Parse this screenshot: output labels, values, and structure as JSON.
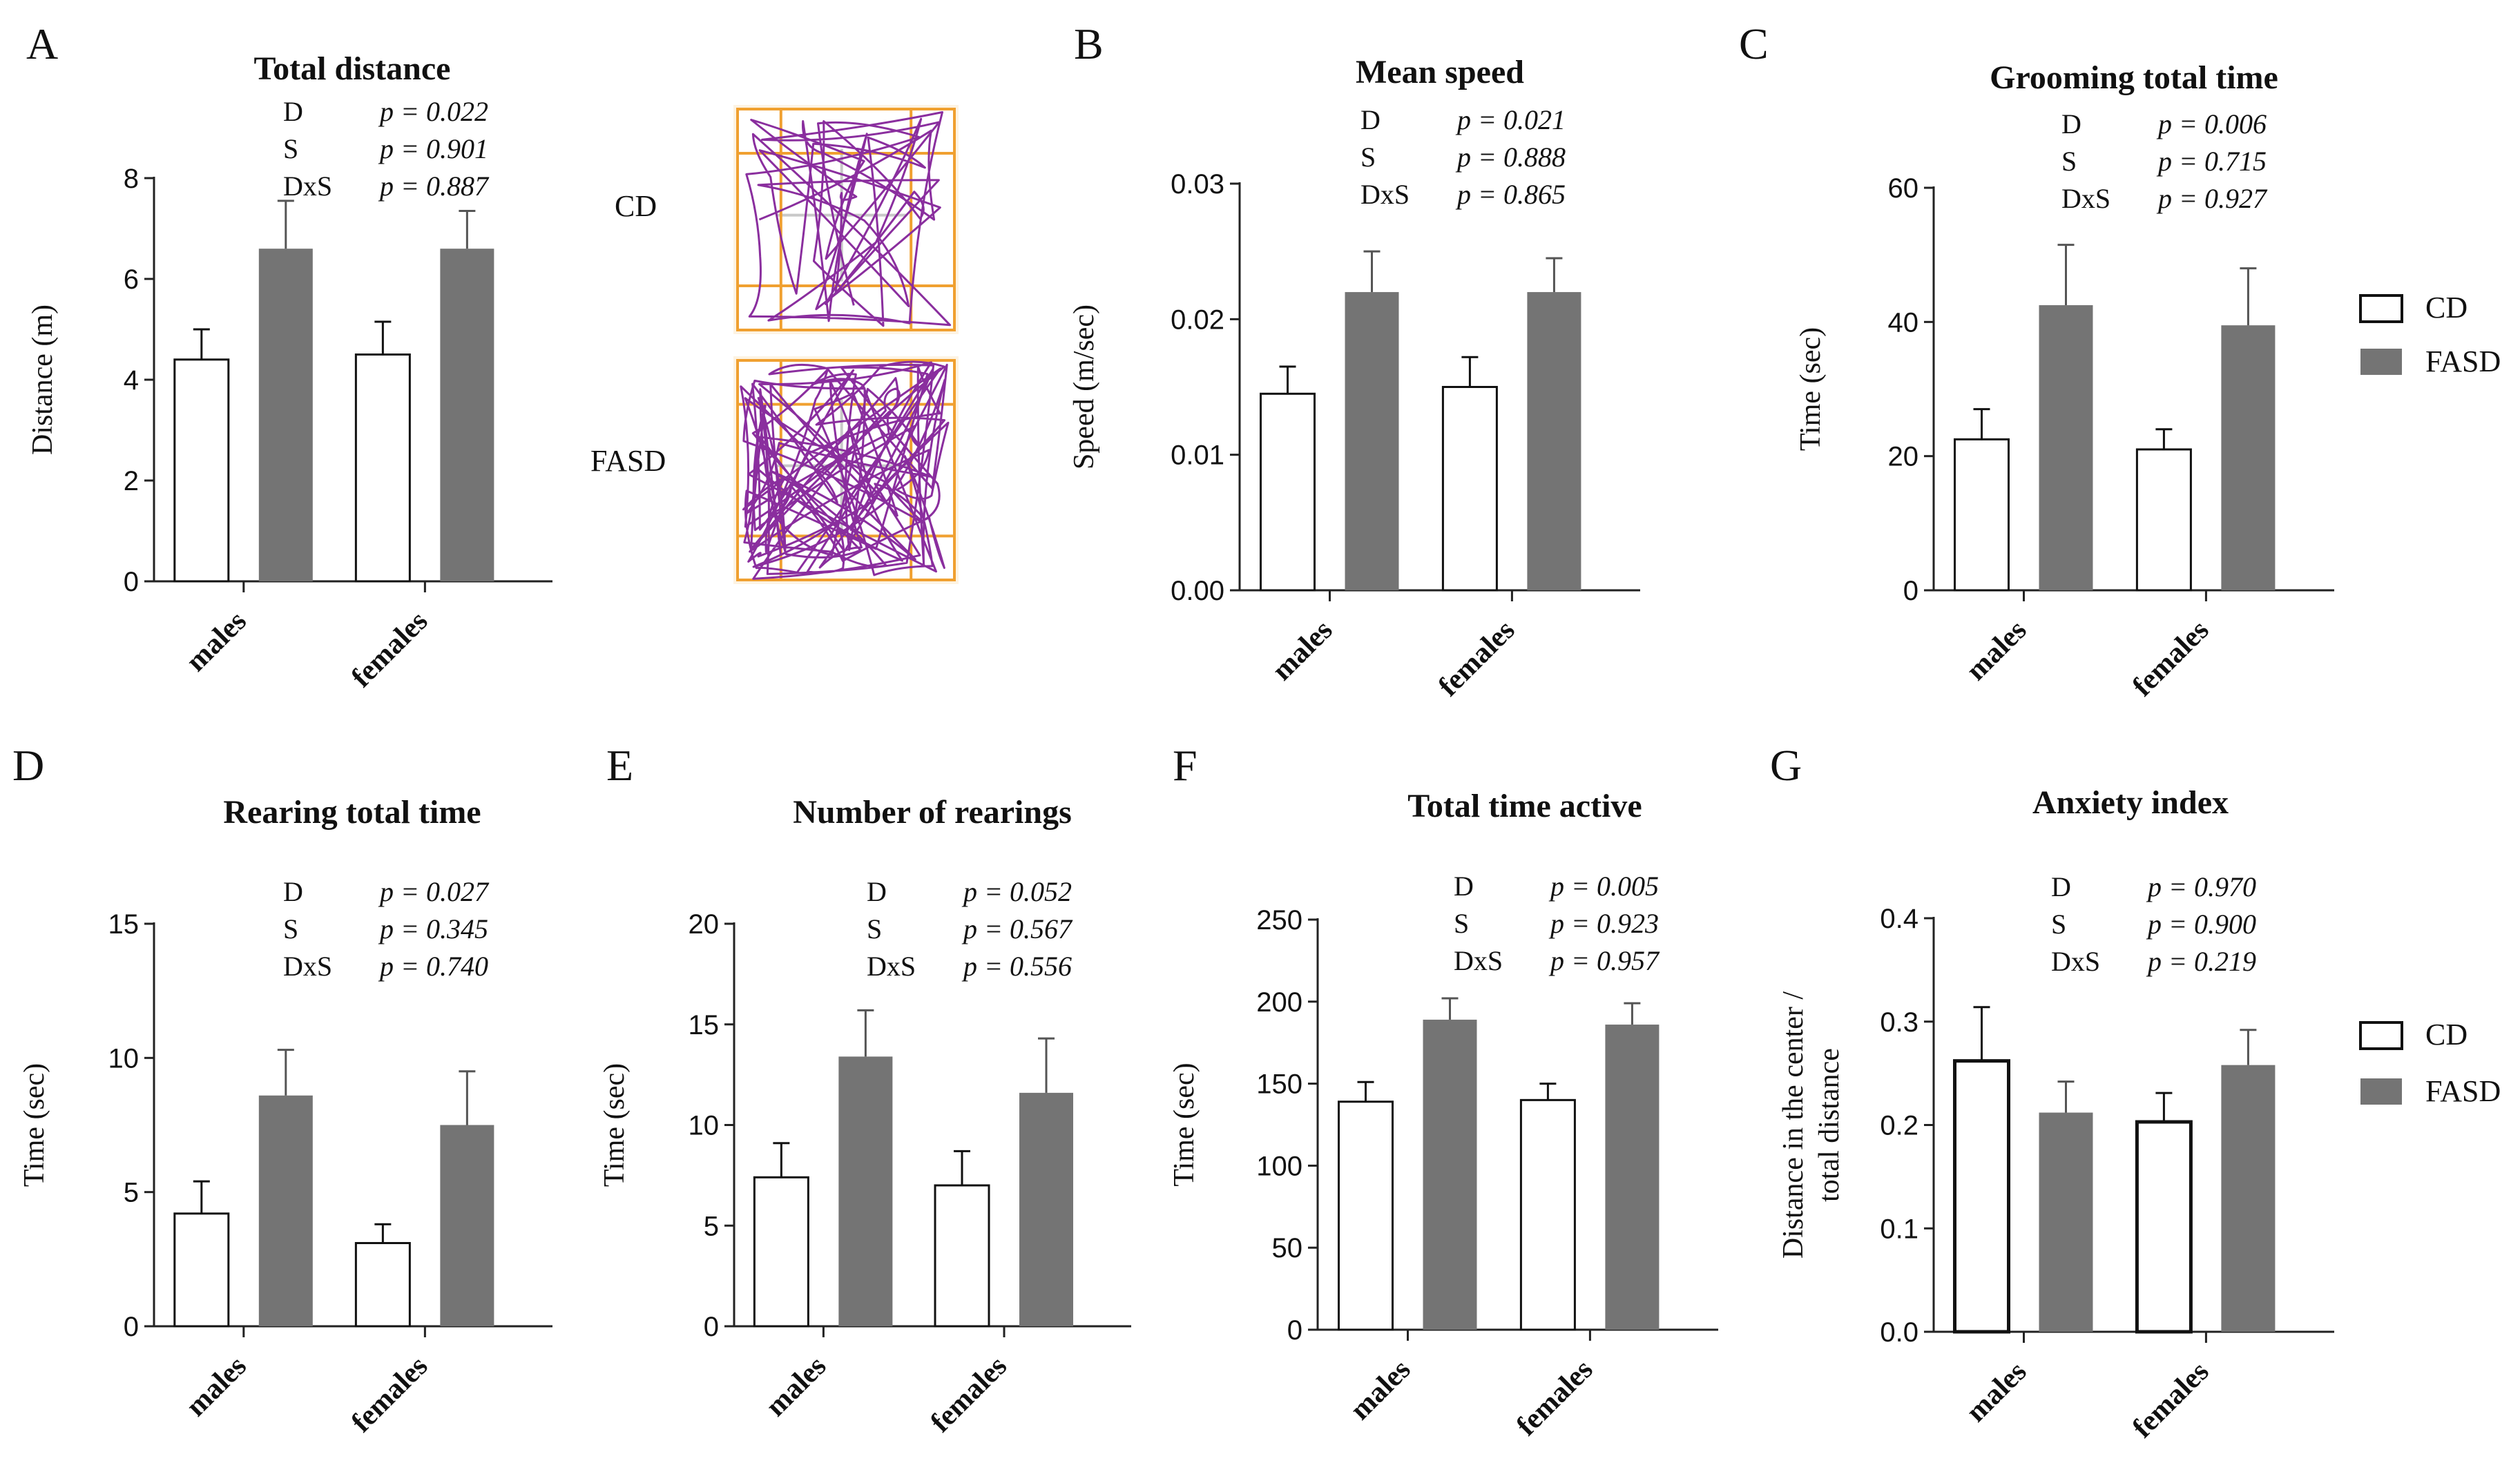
{
  "colors": {
    "cd": "#ffffff",
    "fasd": "#747474",
    "axis": "#222222",
    "track": "#8a2e9e",
    "arena_grid": "#f0a030",
    "arena_center": "#c8c8c8"
  },
  "legend": {
    "cd": "CD",
    "fasd": "FASD"
  },
  "track_panel": {
    "cd_label": "CD",
    "fasd_label": "FASD"
  },
  "chart_data": [
    {
      "id": "A",
      "type": "bar",
      "letter": "A",
      "title": "Total distance",
      "ylabel": "Distance (m)",
      "categories": [
        "males",
        "females"
      ],
      "ylim": [
        0,
        8
      ],
      "yticks": [
        "0",
        "2",
        "4",
        "6",
        "8"
      ],
      "tick_values": [
        0,
        2,
        4,
        6,
        8
      ],
      "series": [
        {
          "name": "CD",
          "values": [
            4.4,
            4.5
          ],
          "errors": [
            0.6,
            0.65
          ]
        },
        {
          "name": "FASD",
          "values": [
            6.6,
            6.6
          ],
          "errors": [
            0.95,
            0.75
          ]
        }
      ],
      "stats": [
        {
          "label": "D",
          "p": "p = 0.022"
        },
        {
          "label": "S",
          "p": "p = 0.901"
        },
        {
          "label": "DxS",
          "p": "p = 0.887"
        }
      ]
    },
    {
      "id": "B",
      "type": "bar",
      "letter": "B",
      "title": "Mean speed",
      "ylabel": "Speed (m/sec)",
      "categories": [
        "males",
        "females"
      ],
      "ylim": [
        0,
        0.03
      ],
      "yticks": [
        "0.00",
        "0.01",
        "0.02",
        "0.03"
      ],
      "tick_values": [
        0,
        0.01,
        0.02,
        0.03
      ],
      "series": [
        {
          "name": "CD",
          "values": [
            0.0145,
            0.015
          ],
          "errors": [
            0.002,
            0.0022
          ]
        },
        {
          "name": "FASD",
          "values": [
            0.022,
            0.022
          ],
          "errors": [
            0.003,
            0.0025
          ]
        }
      ],
      "stats": [
        {
          "label": "D",
          "p": "p = 0.021"
        },
        {
          "label": "S",
          "p": "p = 0.888"
        },
        {
          "label": "DxS",
          "p": "p = 0.865"
        }
      ]
    },
    {
      "id": "C",
      "type": "bar",
      "letter": "C",
      "title": "Grooming total time",
      "ylabel": "Time (sec)",
      "categories": [
        "males",
        "females"
      ],
      "ylim": [
        0,
        60
      ],
      "yticks": [
        "0",
        "20",
        "40",
        "60"
      ],
      "tick_values": [
        0,
        20,
        40,
        60
      ],
      "series": [
        {
          "name": "CD",
          "values": [
            22.5,
            21
          ],
          "errors": [
            4.5,
            3
          ]
        },
        {
          "name": "FASD",
          "values": [
            42.5,
            39.5
          ],
          "errors": [
            9,
            8.5
          ]
        }
      ],
      "stats": [
        {
          "label": "D",
          "p": "p = 0.006"
        },
        {
          "label": "S",
          "p": "p = 0.715"
        },
        {
          "label": "DxS",
          "p": "p = 0.927"
        }
      ]
    },
    {
      "id": "D",
      "type": "bar",
      "letter": "D",
      "title": "Rearing total time",
      "ylabel": "Time (sec)",
      "categories": [
        "males",
        "females"
      ],
      "ylim": [
        0,
        15
      ],
      "yticks": [
        "0",
        "5",
        "10",
        "15"
      ],
      "tick_values": [
        0,
        5,
        10,
        15
      ],
      "series": [
        {
          "name": "CD",
          "values": [
            4.2,
            3.1
          ],
          "errors": [
            1.2,
            0.7
          ]
        },
        {
          "name": "FASD",
          "values": [
            8.6,
            7.5
          ],
          "errors": [
            1.7,
            2.0
          ]
        }
      ],
      "stats": [
        {
          "label": "D",
          "p": "p = 0.027"
        },
        {
          "label": "S",
          "p": "p = 0.345"
        },
        {
          "label": "DxS",
          "p": "p = 0.740"
        }
      ]
    },
    {
      "id": "E",
      "type": "bar",
      "letter": "E",
      "title": "Number of rearings",
      "ylabel": "Time (sec)",
      "categories": [
        "males",
        "females"
      ],
      "ylim": [
        0,
        20
      ],
      "yticks": [
        "0",
        "5",
        "10",
        "15",
        "20"
      ],
      "tick_values": [
        0,
        5,
        10,
        15,
        20
      ],
      "series": [
        {
          "name": "CD",
          "values": [
            7.4,
            7.0
          ],
          "errors": [
            1.7,
            1.7
          ]
        },
        {
          "name": "FASD",
          "values": [
            13.4,
            11.6
          ],
          "errors": [
            2.3,
            2.7
          ]
        }
      ],
      "stats": [
        {
          "label": "D",
          "p": "p = 0.052"
        },
        {
          "label": "S",
          "p": "p = 0.567"
        },
        {
          "label": "DxS",
          "p": "p = 0.556"
        }
      ]
    },
    {
      "id": "F",
      "type": "bar",
      "letter": "F",
      "title": "Total time active",
      "ylabel": "Time (sec)",
      "categories": [
        "males",
        "females"
      ],
      "ylim": [
        0,
        250
      ],
      "yticks": [
        "0",
        "50",
        "100",
        "150",
        "200",
        "250"
      ],
      "tick_values": [
        0,
        50,
        100,
        150,
        200,
        250
      ],
      "series": [
        {
          "name": "CD",
          "values": [
            139,
            140
          ],
          "errors": [
            12,
            10
          ]
        },
        {
          "name": "FASD",
          "values": [
            189,
            186
          ],
          "errors": [
            13,
            13
          ]
        }
      ],
      "stats": [
        {
          "label": "D",
          "p": "p = 0.005"
        },
        {
          "label": "S",
          "p": "p = 0.923"
        },
        {
          "label": "DxS",
          "p": "p = 0.957"
        }
      ]
    },
    {
      "id": "G",
      "type": "bar",
      "letter": "G",
      "title": "Anxiety index",
      "ylabel": "Distance in the center / total distance",
      "categories": [
        "males",
        "females"
      ],
      "ylim": [
        0,
        0.4
      ],
      "yticks": [
        "0.0",
        "0.1",
        "0.2",
        "0.3",
        "0.4"
      ],
      "tick_values": [
        0,
        0.1,
        0.2,
        0.3,
        0.4
      ],
      "series": [
        {
          "name": "CD",
          "values": [
            0.262,
            0.203
          ],
          "errors": [
            0.052,
            0.028
          ]
        },
        {
          "name": "FASD",
          "values": [
            0.212,
            0.258
          ],
          "errors": [
            0.03,
            0.034
          ]
        }
      ],
      "stats": [
        {
          "label": "D",
          "p": "p = 0.970"
        },
        {
          "label": "S",
          "p": "p = 0.900"
        },
        {
          "label": "DxS",
          "p": "p = 0.219"
        }
      ]
    }
  ]
}
